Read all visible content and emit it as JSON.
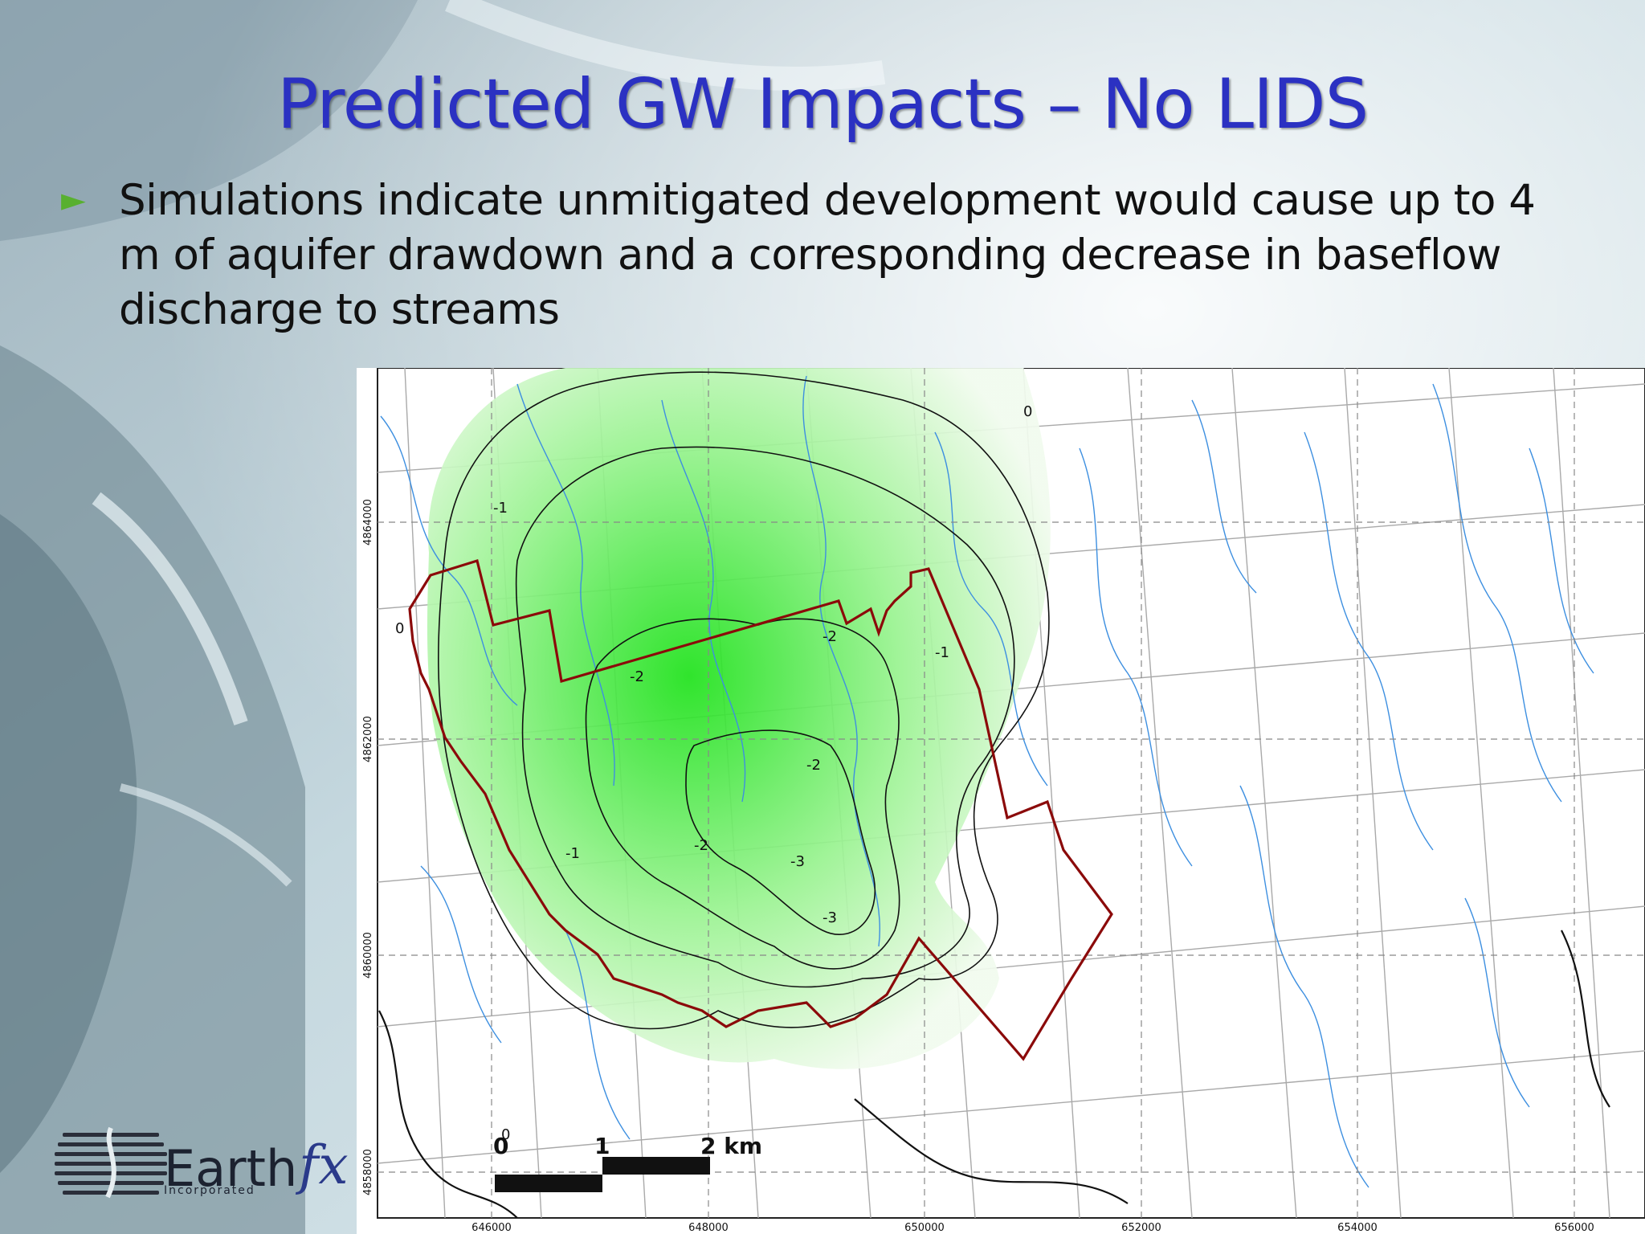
{
  "slide": {
    "title": "Predicted GW Impacts – No LIDS",
    "bullet_text": "Simulations indicate unmitigated development would cause up to 4 m of aquifer drawdown and a corresponding decrease in baseflow discharge to streams"
  },
  "map": {
    "x_ticks": [
      "646000",
      "648000",
      "650000",
      "652000",
      "654000",
      "656000"
    ],
    "y_ticks": [
      "4864000",
      "4862000",
      "4860000",
      "4858000"
    ],
    "contour_labels": [
      "0",
      "-1",
      "-2",
      "-3"
    ],
    "scale_bar": {
      "label_0": "0",
      "label_1": "1",
      "label_2": "2 km"
    },
    "colors": {
      "drawdown_fill": "#22e01e",
      "boundary": "#8b0a0a",
      "streams": "#3d8fe0",
      "roads": "#a9a9a9"
    }
  },
  "logo": {
    "name": "Earth",
    "name_suffix": "fx",
    "subtitle": "Incorporated"
  }
}
